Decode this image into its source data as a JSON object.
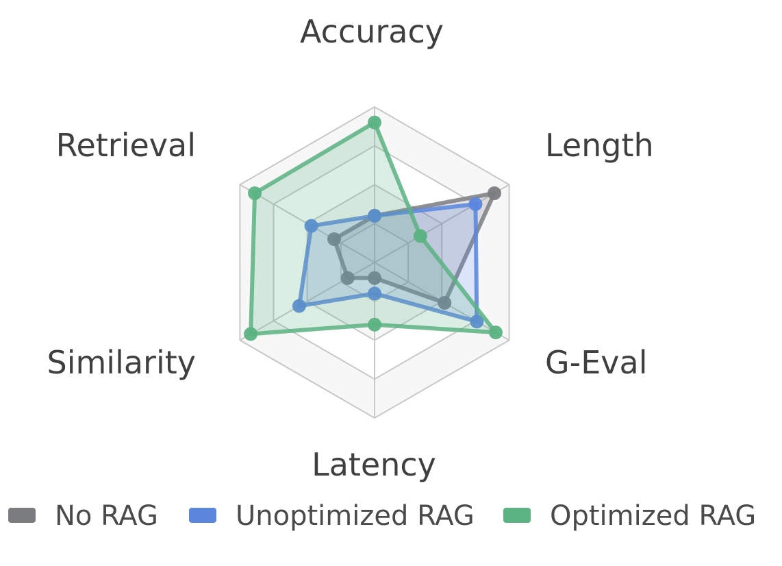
{
  "chart_data": {
    "type": "radar",
    "axes": [
      "Accuracy",
      "Length",
      "G-Eval",
      "Latency",
      "Similarity",
      "Retrieval"
    ],
    "range": [
      0,
      1
    ],
    "rings": 4,
    "grid": true,
    "legend_position": "bottom",
    "series": [
      {
        "name": "No RAG",
        "color": "#7b7c80",
        "values": [
          0.3,
          0.89,
          0.52,
          0.1,
          0.2,
          0.3
        ]
      },
      {
        "name": "Unoptimized RAG",
        "color": "#5b86de",
        "values": [
          0.3,
          0.75,
          0.76,
          0.2,
          0.56,
          0.47
        ]
      },
      {
        "name": "Optimized RAG",
        "color": "#5bb282",
        "values": [
          0.9,
          0.34,
          0.9,
          0.4,
          0.92,
          0.89
        ]
      }
    ]
  }
}
